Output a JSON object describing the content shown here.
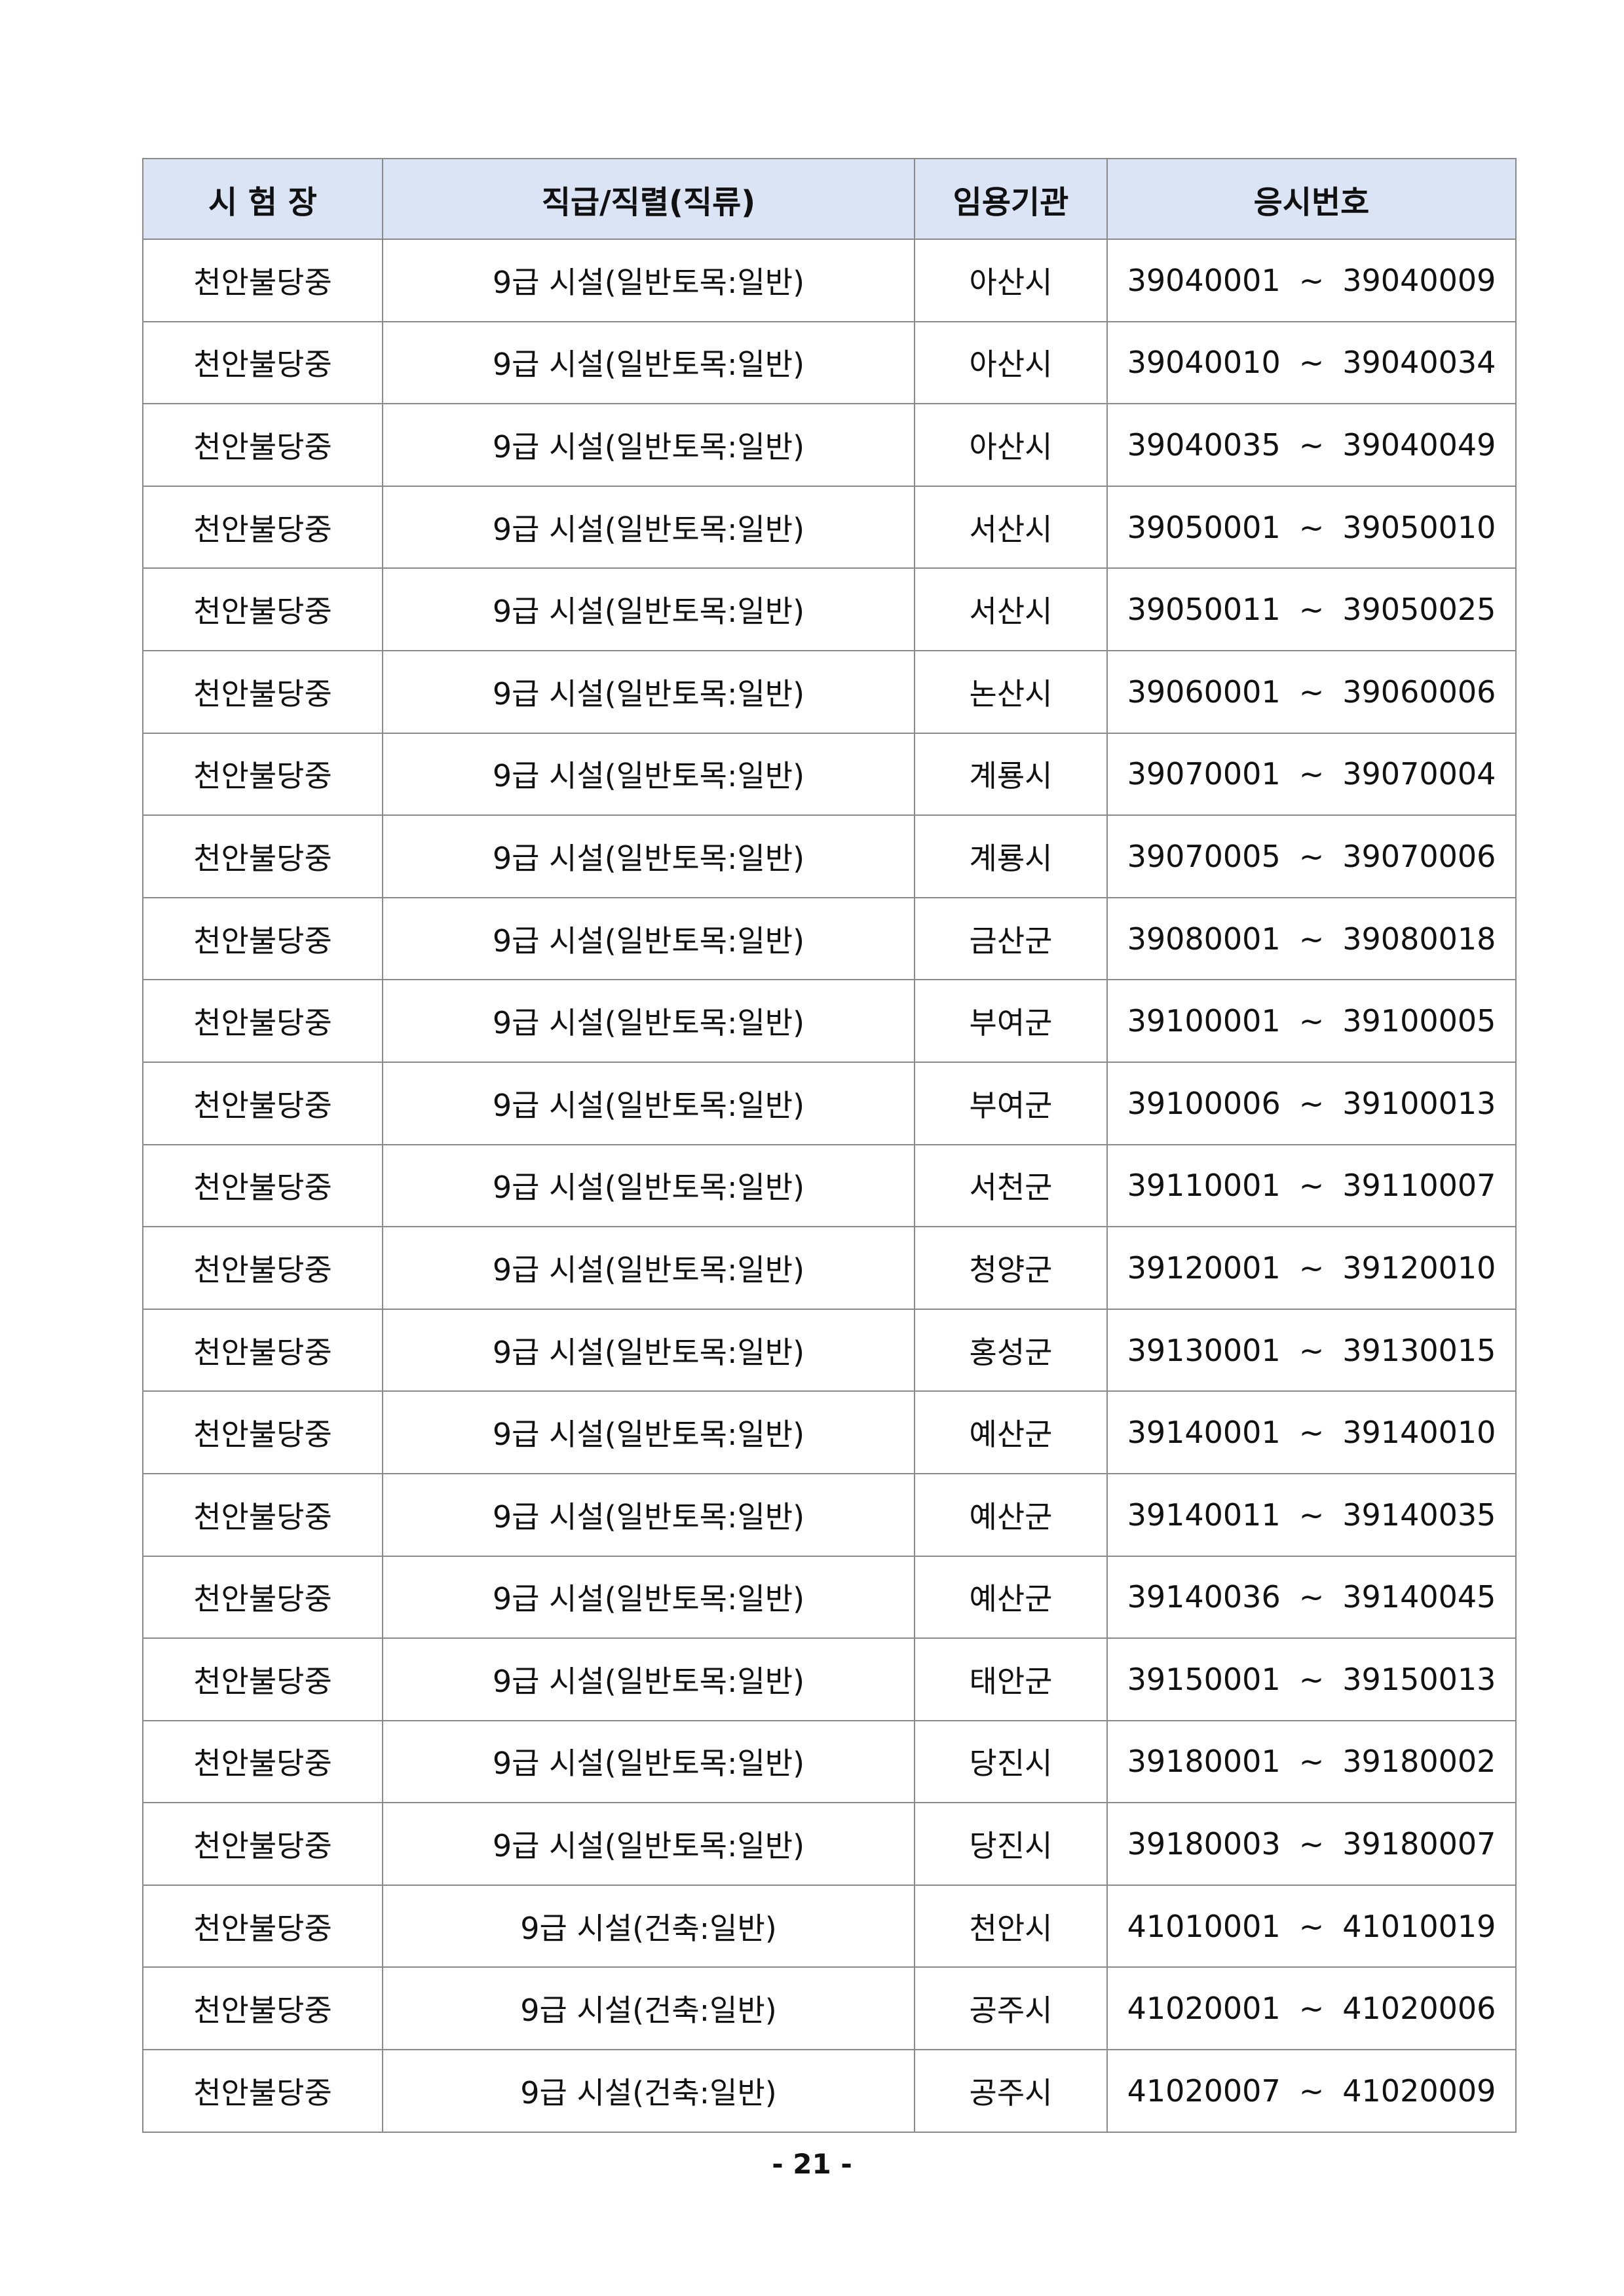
{
  "table": {
    "headers": [
      "시 험 장",
      "직급/직렬(직류)",
      "임용기관",
      "응시번호"
    ],
    "rows": [
      {
        "venue": "천안불당중",
        "position": "9급 시설(일반토목:일반)",
        "agency": "아산시",
        "from": "39040001",
        "to": "39040009"
      },
      {
        "venue": "천안불당중",
        "position": "9급 시설(일반토목:일반)",
        "agency": "아산시",
        "from": "39040010",
        "to": "39040034"
      },
      {
        "venue": "천안불당중",
        "position": "9급 시설(일반토목:일반)",
        "agency": "아산시",
        "from": "39040035",
        "to": "39040049"
      },
      {
        "venue": "천안불당중",
        "position": "9급 시설(일반토목:일반)",
        "agency": "서산시",
        "from": "39050001",
        "to": "39050010"
      },
      {
        "venue": "천안불당중",
        "position": "9급 시설(일반토목:일반)",
        "agency": "서산시",
        "from": "39050011",
        "to": "39050025"
      },
      {
        "venue": "천안불당중",
        "position": "9급 시설(일반토목:일반)",
        "agency": "논산시",
        "from": "39060001",
        "to": "39060006"
      },
      {
        "venue": "천안불당중",
        "position": "9급 시설(일반토목:일반)",
        "agency": "계룡시",
        "from": "39070001",
        "to": "39070004"
      },
      {
        "venue": "천안불당중",
        "position": "9급 시설(일반토목:일반)",
        "agency": "계룡시",
        "from": "39070005",
        "to": "39070006"
      },
      {
        "venue": "천안불당중",
        "position": "9급 시설(일반토목:일반)",
        "agency": "금산군",
        "from": "39080001",
        "to": "39080018"
      },
      {
        "venue": "천안불당중",
        "position": "9급 시설(일반토목:일반)",
        "agency": "부여군",
        "from": "39100001",
        "to": "39100005"
      },
      {
        "venue": "천안불당중",
        "position": "9급 시설(일반토목:일반)",
        "agency": "부여군",
        "from": "39100006",
        "to": "39100013"
      },
      {
        "venue": "천안불당중",
        "position": "9급 시설(일반토목:일반)",
        "agency": "서천군",
        "from": "39110001",
        "to": "39110007"
      },
      {
        "venue": "천안불당중",
        "position": "9급 시설(일반토목:일반)",
        "agency": "청양군",
        "from": "39120001",
        "to": "39120010"
      },
      {
        "venue": "천안불당중",
        "position": "9급 시설(일반토목:일반)",
        "agency": "홍성군",
        "from": "39130001",
        "to": "39130015"
      },
      {
        "venue": "천안불당중",
        "position": "9급 시설(일반토목:일반)",
        "agency": "예산군",
        "from": "39140001",
        "to": "39140010"
      },
      {
        "venue": "천안불당중",
        "position": "9급 시설(일반토목:일반)",
        "agency": "예산군",
        "from": "39140011",
        "to": "39140035"
      },
      {
        "venue": "천안불당중",
        "position": "9급 시설(일반토목:일반)",
        "agency": "예산군",
        "from": "39140036",
        "to": "39140045"
      },
      {
        "venue": "천안불당중",
        "position": "9급 시설(일반토목:일반)",
        "agency": "태안군",
        "from": "39150001",
        "to": "39150013"
      },
      {
        "venue": "천안불당중",
        "position": "9급 시설(일반토목:일반)",
        "agency": "당진시",
        "from": "39180001",
        "to": "39180002"
      },
      {
        "venue": "천안불당중",
        "position": "9급 시설(일반토목:일반)",
        "agency": "당진시",
        "from": "39180003",
        "to": "39180007"
      },
      {
        "venue": "천안불당중",
        "position": "9급 시설(건축:일반)",
        "agency": "천안시",
        "from": "41010001",
        "to": "41010019"
      },
      {
        "venue": "천안불당중",
        "position": "9급 시설(건축:일반)",
        "agency": "공주시",
        "from": "41020001",
        "to": "41020006"
      },
      {
        "venue": "천안불당중",
        "position": "9급 시설(건축:일반)",
        "agency": "공주시",
        "from": "41020007",
        "to": "41020009"
      }
    ],
    "range_separator": "~"
  },
  "page_number": "- 21 -"
}
